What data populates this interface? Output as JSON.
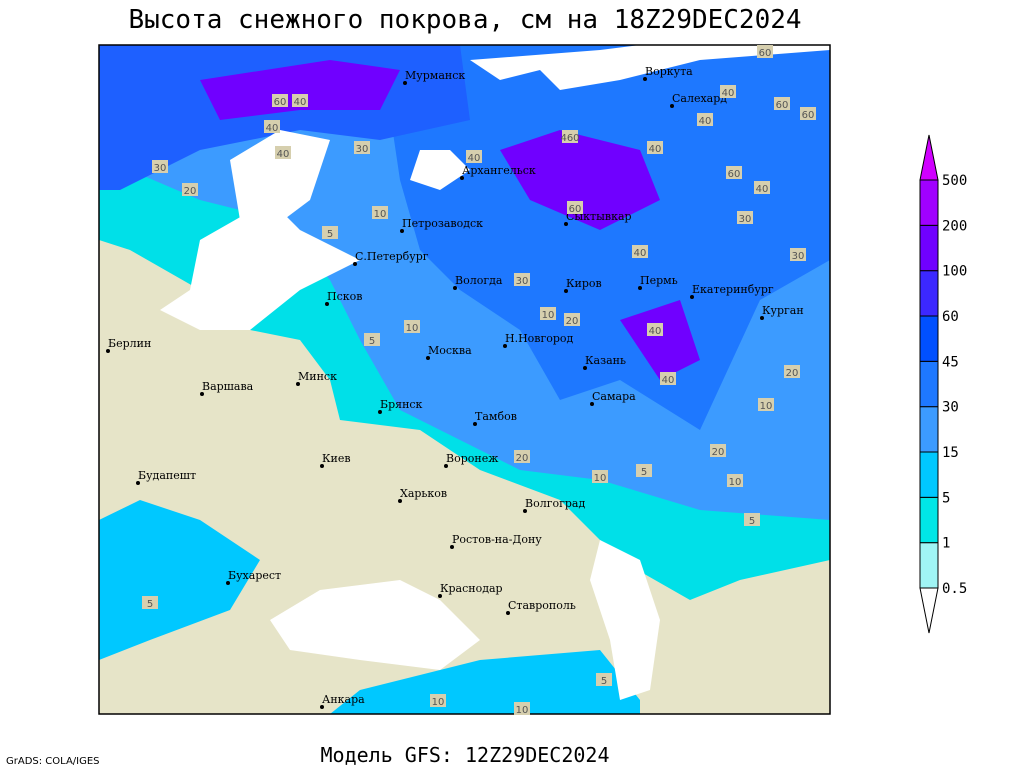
{
  "title": "Высота снежного покрова, см на 18Z29DEC2024",
  "footer": "Модель GFS: 12Z29DEC2024",
  "credit": "GrADS: COLA/IGES",
  "cities": [
    "Мурманск",
    "Воркута",
    "Салехард",
    "Архангельск",
    "Петрозаводск",
    "Сыктывкар",
    "С.Петербург",
    "Вологда",
    "Киров",
    "Пермь",
    "Екатеринбург",
    "Курган",
    "Псков",
    "Берлин",
    "Н.Новгород",
    "Москва",
    "Казань",
    "Варшава",
    "Минск",
    "Самара",
    "Брянск",
    "Тамбов",
    "Киев",
    "Воронеж",
    "Будапешт",
    "Харьков",
    "Волгоград",
    "Ростов-на-Дону",
    "Бухарест",
    "Краснодар",
    "Ставрополь",
    "Анкара"
  ],
  "contour_labels": [
    "60",
    "40",
    "60",
    "40",
    "60",
    "60",
    "40",
    "30",
    "40",
    "30",
    "10",
    "20",
    "40",
    "460",
    "40",
    "60",
    "40",
    "30",
    "40",
    "60",
    "40",
    "30",
    "10",
    "5",
    "30",
    "20",
    "10",
    "5",
    "20",
    "40",
    "40",
    "20",
    "10",
    "20",
    "10",
    "5",
    "10",
    "5",
    "5",
    "10",
    "10",
    "5"
  ],
  "legend": {
    "levels": [
      0.5,
      1,
      5,
      15,
      30,
      45,
      60,
      100,
      200,
      500
    ],
    "colors": [
      "#ffffff",
      "#a0f5f5",
      "#00e6e6",
      "#00c8ff",
      "#3c9bff",
      "#1e78ff",
      "#0050ff",
      "#3c28ff",
      "#7000ff",
      "#a000ff",
      "#d000ff"
    ]
  }
}
